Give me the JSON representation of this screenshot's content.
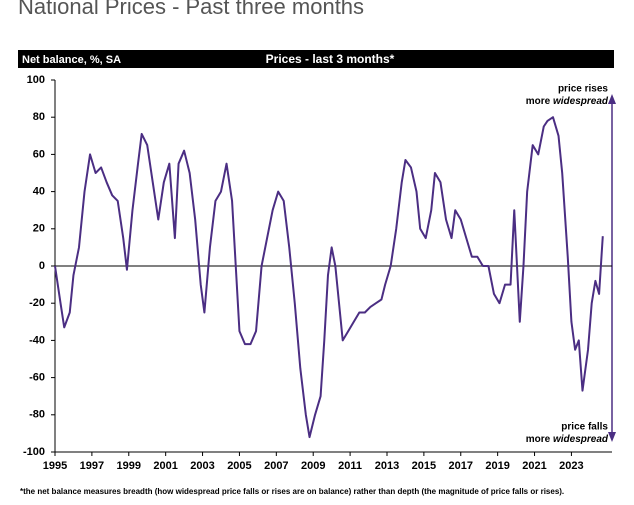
{
  "chart_data": {
    "type": "line",
    "page_title": "National Prices - Past three months",
    "y_label": "Net balance, %, SA",
    "title": "Prices - last 3 months*",
    "annotation_top": {
      "line1": "price rises",
      "line2": "more",
      "line2_em": "widespread"
    },
    "annotation_bottom": {
      "line1": "price falls",
      "line2": "more",
      "line2_em": "widespread"
    },
    "footnote": "*the net balance measures breadth (how widespread price falls or rises are on balance)  rather than depth (the magnitude of price falls or rises).",
    "color": "#4b2e83",
    "xlim": [
      1995,
      2025.2
    ],
    "xticks": [
      1995,
      1997,
      1999,
      2001,
      2003,
      2005,
      2007,
      2009,
      2011,
      2013,
      2015,
      2017,
      2019,
      2021,
      2023
    ],
    "ylim": [
      -100,
      100
    ],
    "yticks": [
      -100,
      -80,
      -60,
      -40,
      -20,
      0,
      20,
      40,
      60,
      80,
      100
    ],
    "x": [
      1995.0,
      1995.3,
      1995.5,
      1995.8,
      1996.0,
      1996.3,
      1996.6,
      1996.9,
      1997.2,
      1997.5,
      1997.8,
      1998.1,
      1998.4,
      1998.7,
      1998.9,
      1999.2,
      1999.5,
      1999.7,
      2000.0,
      2000.3,
      2000.6,
      2000.9,
      2001.2,
      2001.5,
      2001.7,
      2002.0,
      2002.3,
      2002.6,
      2002.9,
      2003.1,
      2003.4,
      2003.7,
      2004.0,
      2004.3,
      2004.6,
      2004.8,
      2005.0,
      2005.3,
      2005.6,
      2005.9,
      2006.2,
      2006.5,
      2006.8,
      2007.1,
      2007.4,
      2007.7,
      2008.0,
      2008.3,
      2008.6,
      2008.8,
      2009.1,
      2009.4,
      2009.6,
      2009.8,
      2010.0,
      2010.2,
      2010.4,
      2010.6,
      2010.9,
      2011.2,
      2011.5,
      2011.8,
      2012.1,
      2012.4,
      2012.7,
      2012.9,
      2013.2,
      2013.5,
      2013.8,
      2014.0,
      2014.3,
      2014.6,
      2014.8,
      2015.1,
      2015.4,
      2015.6,
      2015.9,
      2016.2,
      2016.5,
      2016.7,
      2017.0,
      2017.3,
      2017.6,
      2017.9,
      2018.2,
      2018.5,
      2018.8,
      2019.1,
      2019.4,
      2019.7,
      2019.9,
      2020.2,
      2020.4,
      2020.6,
      2020.9,
      2021.2,
      2021.5,
      2021.7,
      2022.0,
      2022.3,
      2022.5,
      2022.8,
      2023.0,
      2023.2,
      2023.4,
      2023.6,
      2023.9,
      2024.1,
      2024.3,
      2024.5,
      2024.7
    ],
    "values": [
      0,
      -20,
      -33,
      -25,
      -5,
      10,
      40,
      60,
      50,
      53,
      45,
      38,
      35,
      15,
      -2,
      30,
      55,
      71,
      65,
      45,
      25,
      45,
      55,
      15,
      55,
      62,
      50,
      25,
      -10,
      -25,
      10,
      35,
      40,
      55,
      35,
      0,
      -35,
      -42,
      -42,
      -35,
      0,
      15,
      30,
      40,
      35,
      10,
      -20,
      -55,
      -80,
      -92,
      -80,
      -70,
      -40,
      -5,
      10,
      0,
      -20,
      -40,
      -35,
      -30,
      -25,
      -25,
      -22,
      -20,
      -18,
      -10,
      0,
      20,
      45,
      57,
      53,
      40,
      20,
      15,
      30,
      50,
      45,
      25,
      15,
      30,
      25,
      15,
      5,
      5,
      0,
      0,
      -15,
      -20,
      -10,
      -10,
      30,
      -30,
      0,
      40,
      65,
      60,
      75,
      78,
      80,
      70,
      50,
      5,
      -30,
      -45,
      -40,
      -67,
      -45,
      -20,
      -8,
      -15,
      16
    ]
  }
}
